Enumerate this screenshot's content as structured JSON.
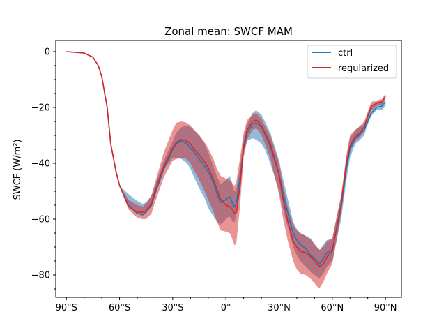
{
  "chart_data": {
    "type": "line",
    "title": "Zonal mean: SWCF MAM",
    "xlabel": "",
    "ylabel": "SWCF (W/m²)",
    "xlim": [
      -96,
      99
    ],
    "ylim": [
      -88,
      4
    ],
    "xticks": [
      -90,
      -60,
      -30,
      0,
      30,
      60,
      90
    ],
    "xtick_labels": [
      "90°S",
      "60°S",
      "30°S",
      "0°",
      "30°N",
      "60°N",
      "90°N"
    ],
    "yticks": [
      0,
      -20,
      -40,
      -60,
      -80
    ],
    "ytick_labels": [
      "0",
      "−20",
      "−40",
      "−60",
      "−80"
    ],
    "legend_position": "top-right",
    "grid": false,
    "x": [
      -90,
      -80,
      -75,
      -72,
      -70,
      -67,
      -65,
      -62,
      -60,
      -55,
      -50,
      -47,
      -45,
      -42,
      -40,
      -35,
      -30,
      -28,
      -25,
      -22,
      -20,
      -18,
      -15,
      -12,
      -10,
      -7,
      -5,
      -3,
      0,
      2,
      3,
      4,
      5,
      6,
      8,
      10,
      12,
      15,
      17,
      18,
      20,
      22,
      25,
      28,
      30,
      32,
      35,
      38,
      40,
      42,
      45,
      48,
      50,
      52,
      53,
      55,
      57,
      60,
      62,
      65,
      68,
      70,
      73,
      75,
      78,
      80,
      82,
      85,
      88,
      90
    ],
    "series": [
      {
        "name": "ctrl",
        "color": "#1f77b4",
        "values": [
          0,
          -0.5,
          -2,
          -5,
          -9,
          -20,
          -33,
          -43,
          -48,
          -55,
          -58,
          -58.5,
          -57.5,
          -55,
          -51,
          -42,
          -35,
          -33,
          -32,
          -33,
          -34.5,
          -36,
          -38.5,
          -41,
          -43,
          -47,
          -51,
          -54,
          -53,
          -52,
          -53,
          -55,
          -55.5,
          -54,
          -45,
          -35,
          -29,
          -26,
          -25.5,
          -26,
          -27,
          -29.5,
          -34,
          -40,
          -44,
          -50,
          -58,
          -65,
          -67.5,
          -69,
          -70.5,
          -73,
          -74,
          -75.5,
          -76,
          -74,
          -72,
          -71,
          -65,
          -56,
          -42,
          -35,
          -31,
          -30,
          -28,
          -25,
          -22,
          -20,
          -19.5,
          -18
        ],
        "band_lower": [
          0,
          -0.5,
          -2,
          -5,
          -9,
          -20,
          -33,
          -43,
          -48,
          -55,
          -58,
          -58.5,
          -57.5,
          -55,
          -51,
          -42,
          -38,
          -38,
          -38.5,
          -40,
          -42,
          -45,
          -49,
          -52.5,
          -56,
          -59,
          -61,
          -62,
          -60,
          -59,
          -60,
          -61,
          -61,
          -58,
          -46,
          -36,
          -32,
          -31,
          -31.5,
          -32,
          -33,
          -35,
          -40,
          -46,
          -50,
          -56,
          -63,
          -70,
          -73,
          -75,
          -77,
          -79,
          -80,
          -81,
          -81,
          -79.5,
          -77,
          -75,
          -69,
          -60,
          -46,
          -38,
          -33,
          -32,
          -30,
          -26,
          -23,
          -21,
          -21,
          -19.5
        ],
        "band_upper": [
          0,
          -0.5,
          -2,
          -5,
          -9,
          -20,
          -33,
          -43,
          -48,
          -51,
          -53.5,
          -54.5,
          -54,
          -51.5,
          -48,
          -39,
          -32,
          -29,
          -27,
          -26.5,
          -27,
          -28,
          -30,
          -33,
          -36,
          -41,
          -45,
          -47.5,
          -46,
          -44.5,
          -46,
          -49,
          -50,
          -49,
          -41,
          -31,
          -26,
          -22,
          -21,
          -21.5,
          -22.5,
          -25,
          -29,
          -35,
          -39,
          -45,
          -53,
          -61,
          -63.5,
          -65,
          -66,
          -67,
          -69,
          -70.5,
          -71,
          -69,
          -67.5,
          -67,
          -61,
          -52,
          -38,
          -31,
          -28,
          -27,
          -26,
          -22.5,
          -19.5,
          -18,
          -17.5,
          -16
        ]
      },
      {
        "name": "regularized",
        "color": "#d62728",
        "values": [
          0,
          -0.5,
          -2,
          -5,
          -9,
          -20,
          -33,
          -43,
          -48,
          -55.5,
          -57.5,
          -57.5,
          -57,
          -54.5,
          -50,
          -41,
          -34.5,
          -32.5,
          -31.5,
          -32,
          -33,
          -35,
          -37,
          -39.5,
          -41.5,
          -46,
          -49.5,
          -53,
          -55,
          -55.5,
          -56,
          -57,
          -58,
          -57.5,
          -48,
          -34,
          -28,
          -25,
          -24.5,
          -25,
          -26.5,
          -29,
          -33,
          -39.5,
          -44,
          -52,
          -61,
          -68,
          -70,
          -71.5,
          -72,
          -73.5,
          -75,
          -76.5,
          -77,
          -76,
          -73.5,
          -71.5,
          -64.5,
          -55,
          -40,
          -34,
          -30.5,
          -29.5,
          -27,
          -23,
          -19.5,
          -18.5,
          -18,
          -16
        ],
        "band_lower": [
          0,
          -0.5,
          -2,
          -5,
          -9,
          -20,
          -33,
          -43,
          -48,
          -56.5,
          -59.5,
          -60,
          -60,
          -58,
          -54,
          -45,
          -39,
          -38.5,
          -38,
          -38.5,
          -40,
          -42.5,
          -46,
          -50,
          -53,
          -57.5,
          -61,
          -64,
          -64.5,
          -65,
          -66,
          -68,
          -69.5,
          -68,
          -55,
          -38,
          -31.5,
          -28,
          -27.5,
          -28,
          -30,
          -33,
          -38,
          -46,
          -51,
          -59,
          -68,
          -75,
          -78,
          -79.5,
          -80,
          -81.5,
          -83,
          -84.5,
          -84.5,
          -82.5,
          -79.5,
          -76,
          -69,
          -58,
          -42,
          -35.5,
          -32,
          -31,
          -28.5,
          -24.5,
          -21,
          -19.5,
          -19,
          -17
        ],
        "band_upper": [
          0,
          -0.5,
          -2,
          -5,
          -9,
          -20,
          -33,
          -43,
          -48,
          -53,
          -55,
          -55.5,
          -54.5,
          -51.5,
          -47,
          -36,
          -28,
          -25.5,
          -25,
          -25.5,
          -26.5,
          -28,
          -30,
          -32.5,
          -34.5,
          -38.5,
          -42,
          -44.5,
          -45.5,
          -46,
          -46.5,
          -47.5,
          -48,
          -46,
          -38,
          -29,
          -24.5,
          -22.5,
          -22,
          -22.5,
          -24,
          -26.5,
          -30,
          -36,
          -40,
          -47,
          -56,
          -62,
          -64,
          -65,
          -66,
          -67.5,
          -69,
          -70.5,
          -71,
          -70,
          -68,
          -67,
          -60.5,
          -51.5,
          -37,
          -30,
          -28,
          -27,
          -25,
          -21.5,
          -18,
          -17.5,
          -17,
          -15
        ]
      }
    ]
  }
}
